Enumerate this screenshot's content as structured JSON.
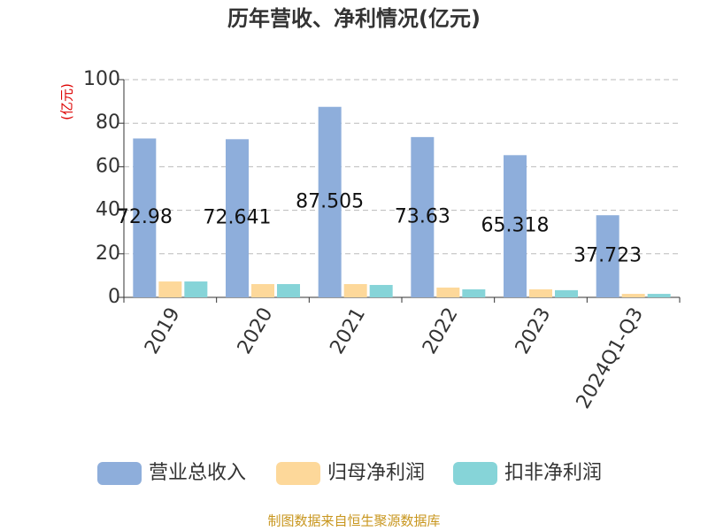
{
  "chart_data": {
    "type": "bar",
    "title": "历年营收、净利情况(亿元)",
    "y_label": "(亿元)",
    "categories": [
      "2019",
      "2020",
      "2021",
      "2022",
      "2023",
      "2024Q1-Q3"
    ],
    "series": [
      {
        "name": "营业总收入",
        "color": "#8eaedb",
        "values": [
          72.98,
          72.641,
          87.505,
          73.63,
          65.318,
          37.723
        ]
      },
      {
        "name": "归母净利润",
        "color": "#fdd89a",
        "values": [
          7.3,
          6.1,
          6.1,
          4.5,
          3.7,
          1.6
        ]
      },
      {
        "name": "扣非净利润",
        "color": "#86d4d8",
        "values": [
          7.3,
          6.1,
          5.7,
          3.7,
          3.3,
          1.6
        ]
      }
    ],
    "labeled_series": 0,
    "ylim": [
      0,
      100
    ],
    "yticks": [
      0,
      20,
      40,
      60,
      80,
      100
    ],
    "grid": true,
    "legend": "bottom",
    "source": "制图数据来自恒生聚源数据库"
  }
}
